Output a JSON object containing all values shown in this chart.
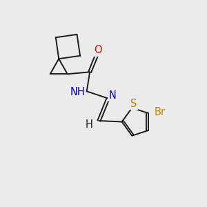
{
  "bg_color": "#ebebeb",
  "bond_color": "#1a1a1a",
  "bond_width": 1.4,
  "atom_colors": {
    "O": "#ff0000",
    "N": "#0000cd",
    "S": "#b8860b",
    "Br": "#b8860b",
    "H": "#1a1a1a",
    "C": "#1a1a1a"
  },
  "font_size": 9.5,
  "fig_size": [
    3.0,
    3.0
  ],
  "dpi": 100
}
